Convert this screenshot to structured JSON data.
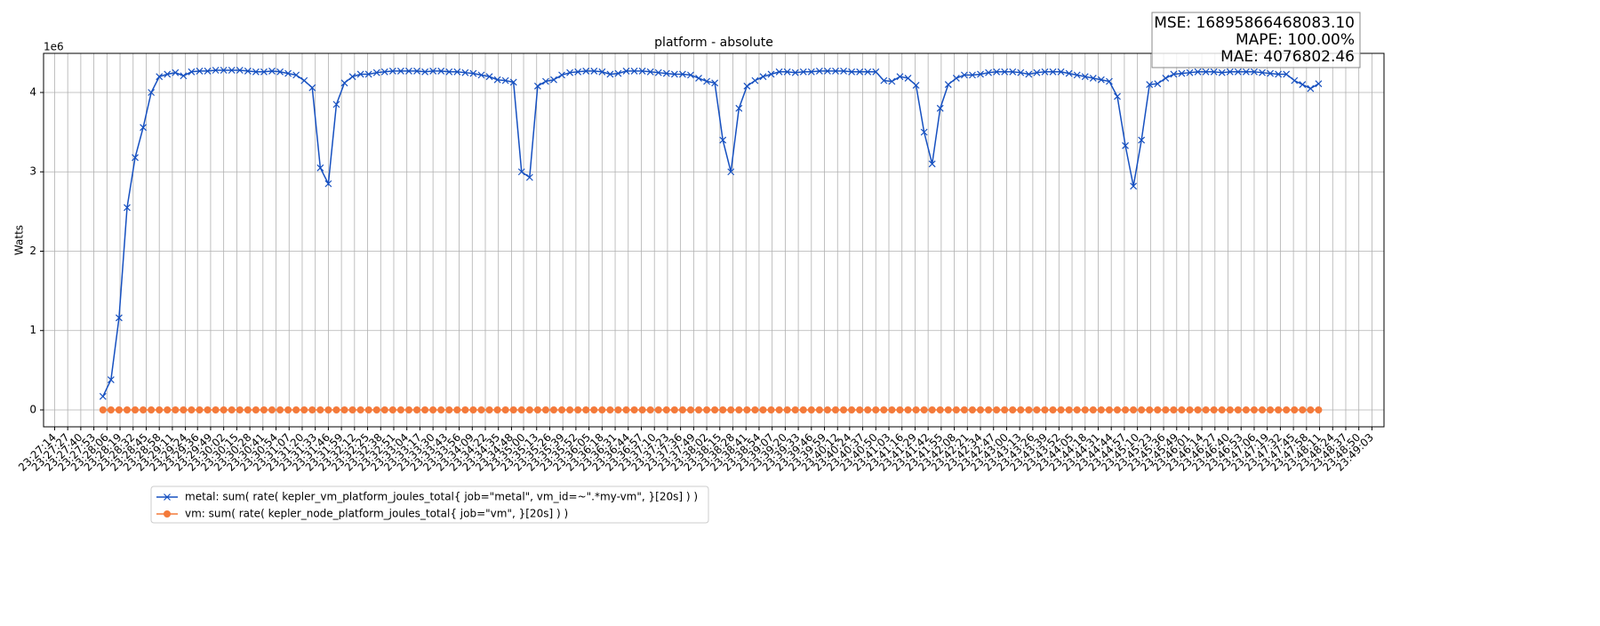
{
  "chart_data": {
    "type": "line",
    "title": "platform - absolute",
    "y_label": "Watts",
    "y_offset_label": "1e6",
    "annotations": [
      "MSE: 16895866468083.10",
      "MAPE: 100.00%",
      "MAE: 4076802.46"
    ],
    "x": [
      "23:28:02",
      "23:28:10",
      "23:28:18",
      "23:28:26",
      "23:28:34",
      "23:28:42",
      "23:28:50",
      "23:28:58",
      "23:29:06",
      "23:29:14",
      "23:29:22",
      "23:29:30",
      "23:29:38",
      "23:29:46",
      "23:29:54",
      "23:30:02",
      "23:30:10",
      "23:30:18",
      "23:30:26",
      "23:30:34",
      "23:30:42",
      "23:30:50",
      "23:30:58",
      "23:31:06",
      "23:31:14",
      "23:31:22",
      "23:31:30",
      "23:31:38",
      "23:31:46",
      "23:31:54",
      "23:32:02",
      "23:32:10",
      "23:32:18",
      "23:32:26",
      "23:32:34",
      "23:32:42",
      "23:32:50",
      "23:32:58",
      "23:33:06",
      "23:33:14",
      "23:33:22",
      "23:33:30",
      "23:33:38",
      "23:33:46",
      "23:33:54",
      "23:34:02",
      "23:34:10",
      "23:34:18",
      "23:34:26",
      "23:34:34",
      "23:34:42",
      "23:34:50",
      "23:34:58",
      "23:35:06",
      "23:35:14",
      "23:35:22",
      "23:35:30",
      "23:35:38",
      "23:35:46",
      "23:35:54",
      "23:36:02",
      "23:36:10",
      "23:36:18",
      "23:36:26",
      "23:36:34",
      "23:36:42",
      "23:36:50",
      "23:36:58",
      "23:37:06",
      "23:37:14",
      "23:37:22",
      "23:37:30",
      "23:37:38",
      "23:37:46",
      "23:37:54",
      "23:38:02",
      "23:38:10",
      "23:38:18",
      "23:38:26",
      "23:38:34",
      "23:38:42",
      "23:38:50",
      "23:38:58",
      "23:39:06",
      "23:39:14",
      "23:39:22",
      "23:39:30",
      "23:39:38",
      "23:39:46",
      "23:39:54",
      "23:40:02",
      "23:40:10",
      "23:40:18",
      "23:40:26",
      "23:40:34",
      "23:40:42",
      "23:40:50",
      "23:40:58",
      "23:41:06",
      "23:41:14",
      "23:41:22",
      "23:41:30",
      "23:41:38",
      "23:41:46",
      "23:41:54",
      "23:42:02",
      "23:42:10",
      "23:42:18",
      "23:42:26",
      "23:42:34",
      "23:42:42",
      "23:42:50",
      "23:42:58",
      "23:43:06",
      "23:43:14",
      "23:43:22",
      "23:43:30",
      "23:43:38",
      "23:43:46",
      "23:43:54",
      "23:44:02",
      "23:44:10",
      "23:44:18",
      "23:44:26",
      "23:44:34",
      "23:44:42",
      "23:44:50",
      "23:44:58",
      "23:45:06",
      "23:45:14",
      "23:45:22",
      "23:45:30",
      "23:45:38",
      "23:45:46",
      "23:45:54",
      "23:46:02",
      "23:46:10",
      "23:46:18",
      "23:46:26",
      "23:46:34",
      "23:46:42",
      "23:46:50",
      "23:46:58",
      "23:47:06",
      "23:47:14",
      "23:47:22",
      "23:47:30",
      "23:47:38",
      "23:47:46",
      "23:47:54",
      "23:48:02",
      "23:48:10"
    ],
    "series": [
      {
        "name": "metal: sum( rate( kepler_vm_platform_joules_total{ job=\"metal\", vm_id=~\".*my-vm\", }[20s] ) )",
        "color": "#1650c0",
        "marker": "x",
        "values": [
          170000,
          380000,
          1160000,
          2550000,
          3180000,
          3560000,
          4000000,
          4200000,
          4230000,
          4250000,
          4210000,
          4260000,
          4270000,
          4270000,
          4280000,
          4280000,
          4280000,
          4280000,
          4270000,
          4260000,
          4260000,
          4270000,
          4260000,
          4240000,
          4220000,
          4150000,
          4060000,
          3050000,
          2850000,
          3850000,
          4120000,
          4200000,
          4230000,
          4230000,
          4250000,
          4260000,
          4270000,
          4270000,
          4270000,
          4270000,
          4260000,
          4270000,
          4270000,
          4260000,
          4260000,
          4250000,
          4240000,
          4220000,
          4200000,
          4160000,
          4150000,
          4130000,
          3000000,
          2930000,
          4080000,
          4140000,
          4160000,
          4220000,
          4250000,
          4260000,
          4270000,
          4270000,
          4260000,
          4230000,
          4240000,
          4270000,
          4270000,
          4270000,
          4260000,
          4250000,
          4240000,
          4230000,
          4230000,
          4220000,
          4180000,
          4140000,
          4120000,
          3400000,
          3000000,
          3800000,
          4080000,
          4150000,
          4200000,
          4230000,
          4260000,
          4260000,
          4250000,
          4260000,
          4260000,
          4270000,
          4270000,
          4270000,
          4270000,
          4260000,
          4260000,
          4260000,
          4260000,
          4150000,
          4140000,
          4200000,
          4180000,
          4090000,
          3500000,
          3100000,
          3800000,
          4100000,
          4180000,
          4220000,
          4220000,
          4230000,
          4250000,
          4260000,
          4260000,
          4260000,
          4250000,
          4230000,
          4250000,
          4260000,
          4260000,
          4260000,
          4240000,
          4220000,
          4200000,
          4180000,
          4160000,
          4140000,
          3950000,
          3330000,
          2820000,
          3400000,
          4100000,
          4110000,
          4180000,
          4230000,
          4240000,
          4250000,
          4260000,
          4260000,
          4260000,
          4250000,
          4260000,
          4260000,
          4260000,
          4260000,
          4250000,
          4240000,
          4230000,
          4230000,
          4150000,
          4100000,
          4050000,
          4110000
        ]
      },
      {
        "name": "vm: sum( rate( kepler_node_platform_joules_total{ job=\"vm\", }[20s] ) )",
        "color": "#f47a3a",
        "marker": "o",
        "values": [
          0,
          0,
          0,
          0,
          0,
          0,
          0,
          0,
          0,
          0,
          0,
          0,
          0,
          0,
          0,
          0,
          0,
          0,
          0,
          0,
          0,
          0,
          0,
          0,
          0,
          0,
          0,
          0,
          0,
          0,
          0,
          0,
          0,
          0,
          0,
          0,
          0,
          0,
          0,
          0,
          0,
          0,
          0,
          0,
          0,
          0,
          0,
          0,
          0,
          0,
          0,
          0,
          0,
          0,
          0,
          0,
          0,
          0,
          0,
          0,
          0,
          0,
          0,
          0,
          0,
          0,
          0,
          0,
          0,
          0,
          0,
          0,
          0,
          0,
          0,
          0,
          0,
          0,
          0,
          0,
          0,
          0,
          0,
          0,
          0,
          0,
          0,
          0,
          0,
          0,
          0,
          0,
          0,
          0,
          0,
          0,
          0,
          0,
          0,
          0,
          0,
          0,
          0,
          0,
          0,
          0,
          0,
          0,
          0,
          0,
          0,
          0,
          0,
          0,
          0,
          0,
          0,
          0,
          0,
          0,
          0,
          0,
          0,
          0,
          0,
          0,
          0,
          0,
          0,
          0,
          0,
          0,
          0,
          0,
          0,
          0,
          0,
          0,
          0,
          0,
          0,
          0,
          0,
          0,
          0,
          0,
          0,
          0,
          0,
          0,
          0,
          0
        ]
      }
    ],
    "xlim": [
      "23:27:03",
      "23:49:15"
    ],
    "xticks": [
      "23:27:14",
      "23:27:27",
      "23:27:40",
      "23:27:53",
      "23:28:06",
      "23:28:19",
      "23:28:32",
      "23:28:45",
      "23:28:58",
      "23:29:11",
      "23:29:24",
      "23:29:36",
      "23:29:49",
      "23:30:02",
      "23:30:15",
      "23:30:28",
      "23:30:41",
      "23:30:54",
      "23:31:07",
      "23:31:20",
      "23:31:33",
      "23:31:46",
      "23:31:59",
      "23:32:12",
      "23:32:25",
      "23:32:38",
      "23:32:51",
      "23:33:04",
      "23:33:17",
      "23:33:30",
      "23:33:43",
      "23:33:56",
      "23:34:09",
      "23:34:22",
      "23:34:35",
      "23:34:48",
      "23:35:00",
      "23:35:13",
      "23:35:26",
      "23:35:39",
      "23:35:52",
      "23:36:05",
      "23:36:18",
      "23:36:31",
      "23:36:44",
      "23:36:57",
      "23:37:10",
      "23:37:23",
      "23:37:36",
      "23:37:49",
      "23:38:02",
      "23:38:15",
      "23:38:28",
      "23:38:41",
      "23:38:54",
      "23:39:07",
      "23:39:20",
      "23:39:33",
      "23:39:46",
      "23:39:59",
      "23:40:12",
      "23:40:24",
      "23:40:37",
      "23:40:50",
      "23:41:03",
      "23:41:16",
      "23:41:29",
      "23:41:42",
      "23:41:55",
      "23:42:08",
      "23:42:21",
      "23:42:34",
      "23:42:47",
      "23:43:00",
      "23:43:13",
      "23:43:26",
      "23:43:39",
      "23:43:52",
      "23:44:05",
      "23:44:18",
      "23:44:31",
      "23:44:44",
      "23:44:57",
      "23:45:10",
      "23:45:23",
      "23:45:36",
      "23:45:49",
      "23:46:01",
      "23:46:14",
      "23:46:27",
      "23:46:40",
      "23:46:53",
      "23:47:06",
      "23:47:19",
      "23:47:32",
      "23:47:45",
      "23:47:58",
      "23:48:11",
      "23:48:24",
      "23:48:37",
      "23:48:50",
      "23:49:03"
    ],
    "ylim": [
      -213000,
      4493000
    ],
    "yticks": [
      0,
      {
        "value": 1000000,
        "label": "1"
      },
      {
        "value": 2000000,
        "label": "2"
      },
      {
        "value": 3000000,
        "label": "3"
      },
      {
        "value": 4000000,
        "label": "4"
      }
    ],
    "grid": true,
    "legend": "lower left"
  }
}
